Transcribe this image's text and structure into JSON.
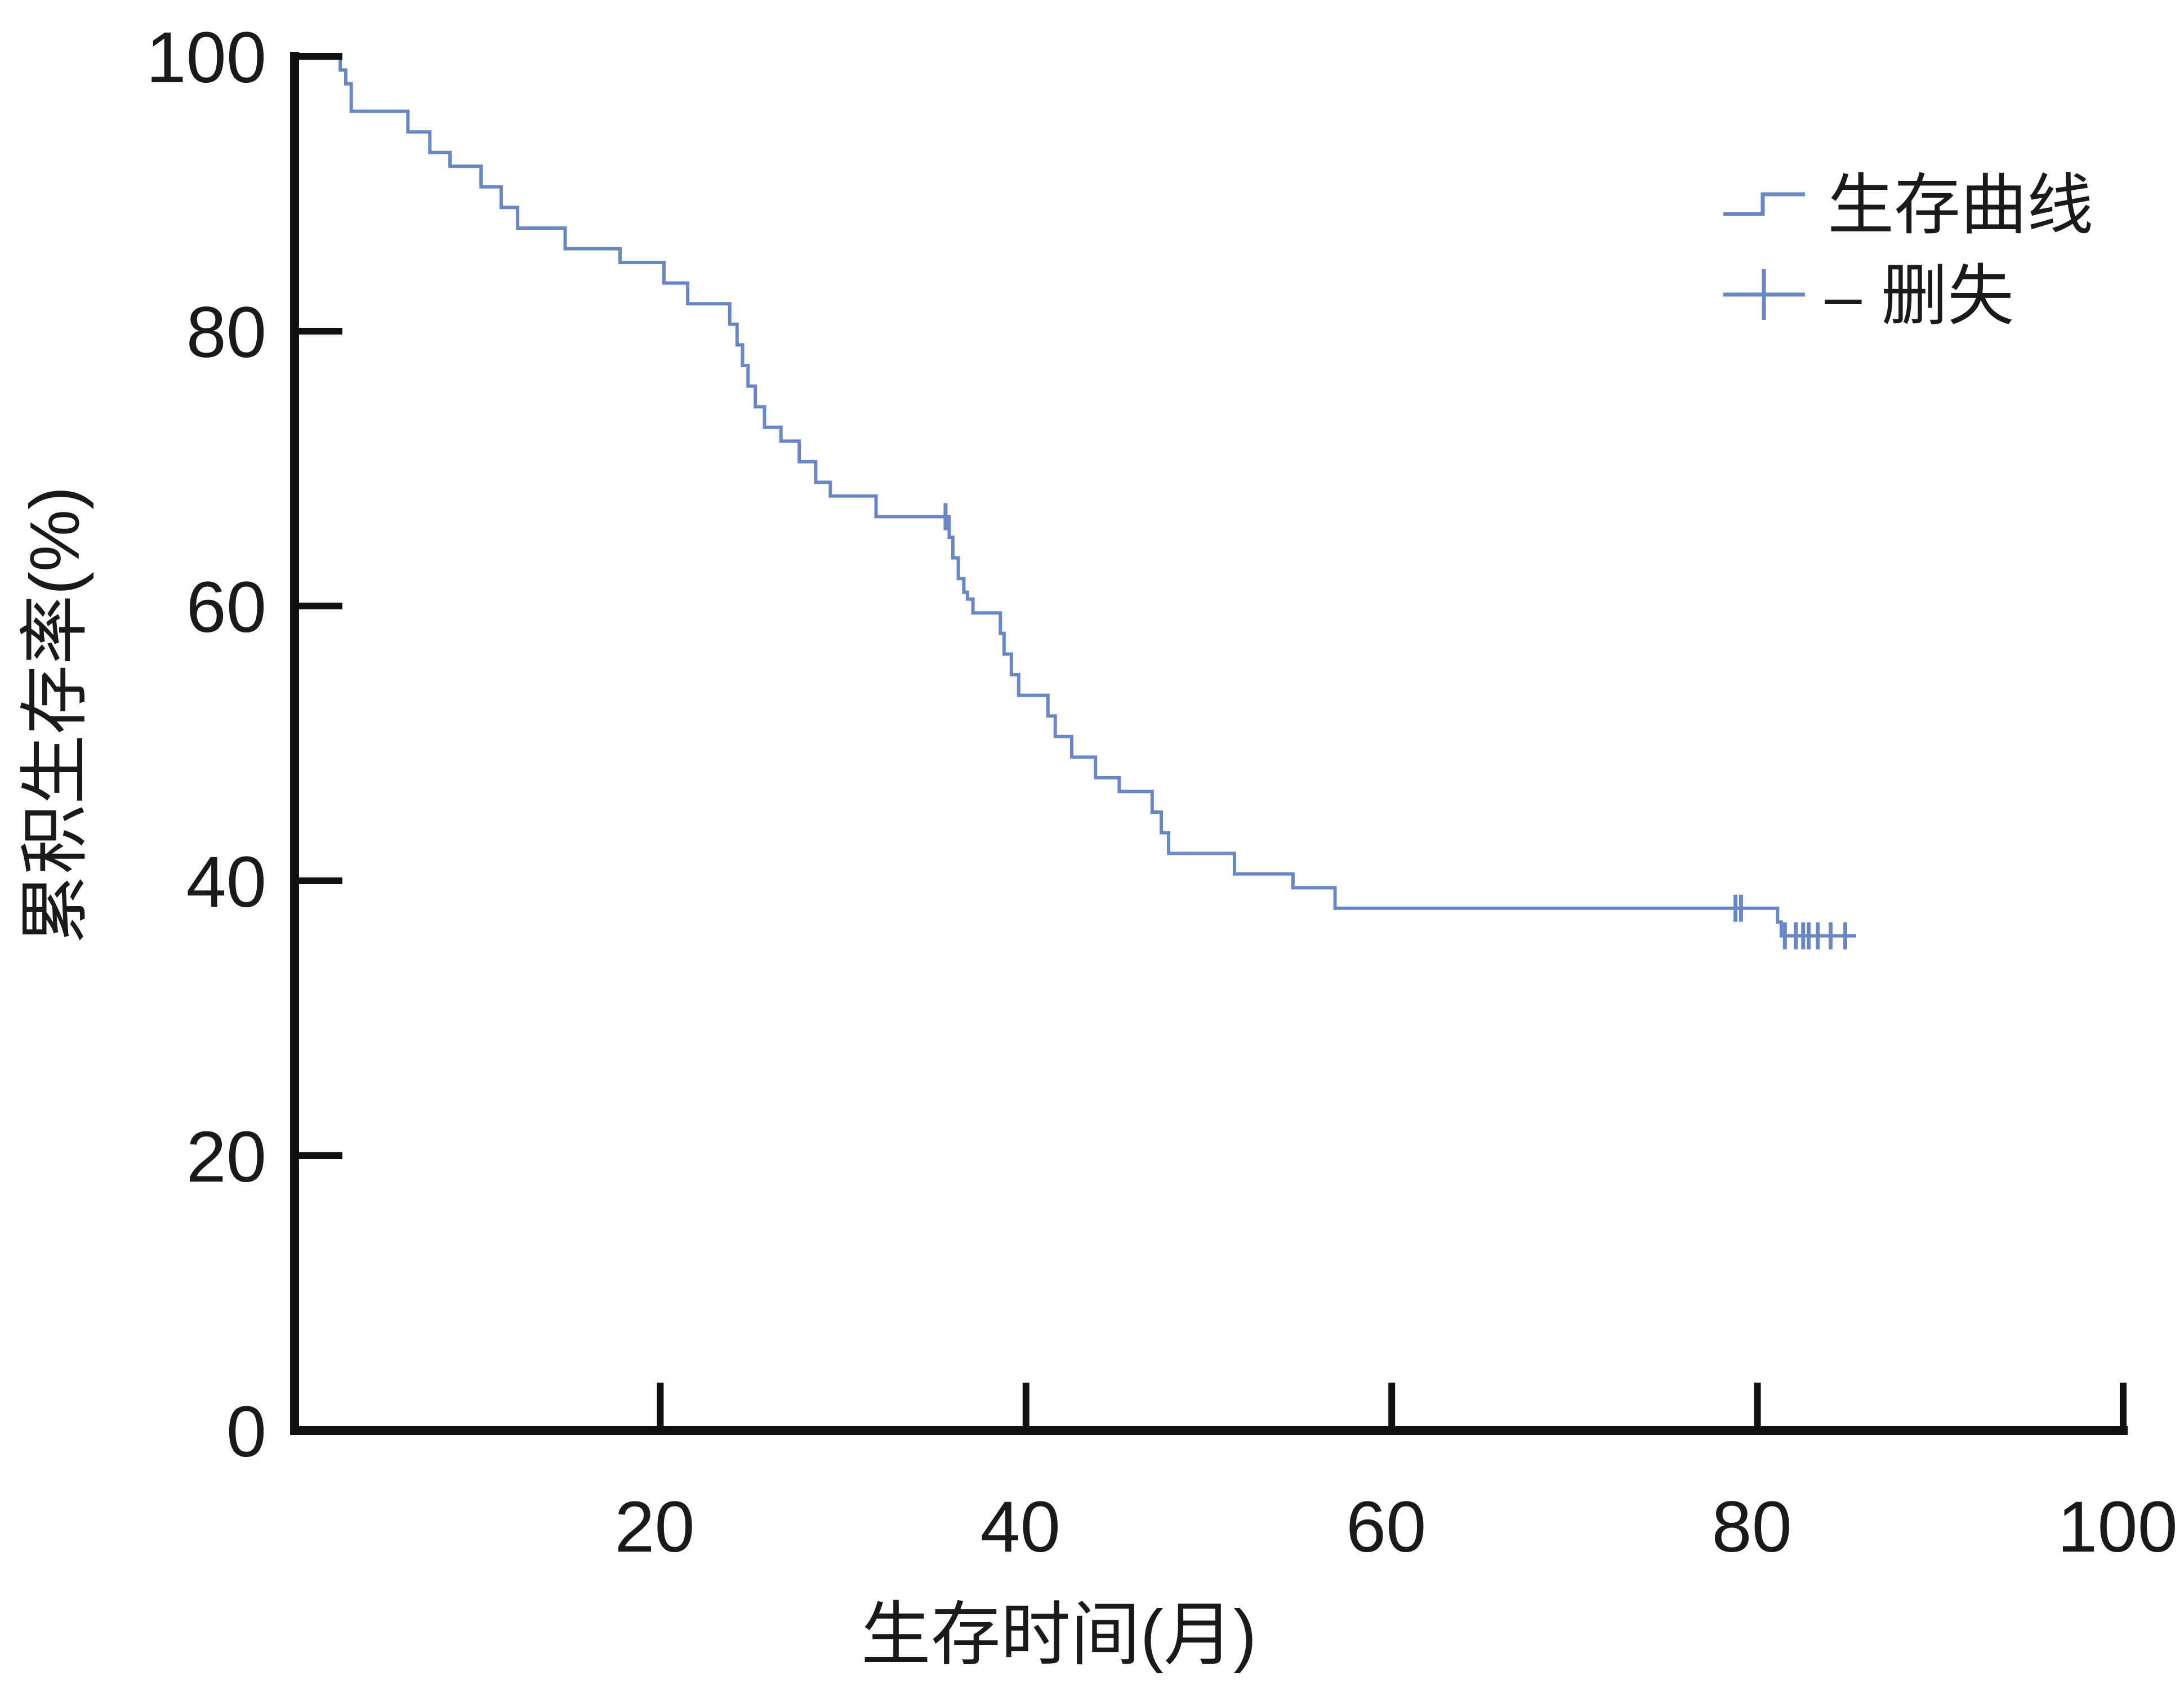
{
  "chart_data": {
    "type": "line",
    "step": true,
    "title": "",
    "xlabel": "生存时间(月)",
    "ylabel": "累积生存率(%)",
    "xlim": [
      0,
      100
    ],
    "ylim": [
      0,
      100
    ],
    "xticks": [
      "20",
      "40",
      "60",
      "80",
      "100"
    ],
    "yticks": [
      "0",
      "20",
      "40",
      "60",
      "80",
      "100"
    ],
    "grid": false,
    "legend_position": "top-right",
    "series_color": "#6a87c5",
    "series": [
      {
        "name": "生存曲线",
        "x": [
          0,
          2.5,
          2.8,
          3.1,
          6.2,
          7.4,
          8.5,
          10.2,
          11.3,
          12.2,
          14.8,
          17.8,
          20.2,
          21.5,
          23.8,
          24.2,
          24.5,
          24.8,
          25.2,
          25.7,
          26.6,
          27.6,
          28.5,
          29.3,
          31.8,
          35.8,
          36.0,
          36.3,
          36.6,
          36.8,
          37.1,
          38.6,
          38.8,
          39.2,
          39.6,
          41.2,
          41.6,
          42.5,
          43.8,
          45.1,
          46.9,
          47.4,
          47.8,
          51.4,
          54.6,
          56.9,
          81.1,
          81.3
        ],
        "y": [
          100,
          99,
          98,
          96,
          94.5,
          93,
          92,
          90.5,
          89,
          87.5,
          86,
          85,
          83.5,
          82,
          80.5,
          79,
          77.5,
          76,
          74.5,
          73,
          72,
          70.5,
          69,
          68,
          66.5,
          65,
          63.5,
          62,
          61,
          60.5,
          59.5,
          58,
          56.5,
          55,
          53.5,
          52,
          50.5,
          49,
          47.5,
          46.5,
          45,
          43.5,
          42,
          40.5,
          39.5,
          38,
          37,
          36
        ]
      }
    ],
    "censored": {
      "name": "删失",
      "x": [
        35.6,
        78.8,
        79.1,
        81.5,
        82.1,
        82.5,
        82.8,
        83.3,
        84.0,
        84.8
      ],
      "y": [
        66.5,
        38,
        38,
        36,
        36,
        36,
        36,
        36,
        36,
        36
      ]
    },
    "legend": {
      "survival_label": "生存曲线",
      "censored_label": "删失",
      "censored_dash": "–"
    }
  }
}
